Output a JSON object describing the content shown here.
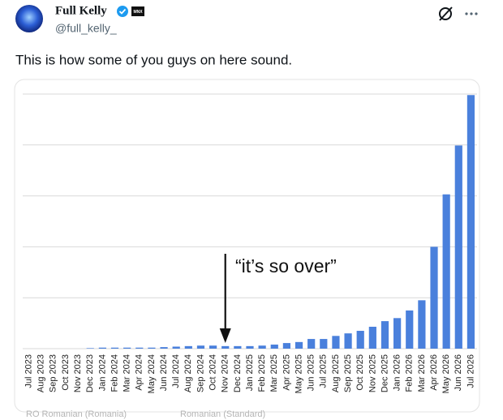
{
  "tweet": {
    "author": {
      "name": "Full Kelly",
      "handle": "@full_kelly_",
      "badge": "MNX"
    },
    "text": "This is how some of you guys on here sound.",
    "footer": [
      "RO Romanian (Romania)",
      "Romanian (Standard)"
    ]
  },
  "chart_data": {
    "type": "bar",
    "categories": [
      "Jul 2023",
      "Aug 2023",
      "Sep 2023",
      "Oct 2023",
      "Nov 2023",
      "Dec 2023",
      "Jan 2024",
      "Feb 2024",
      "Mar 2024",
      "Apr 2024",
      "May 2024",
      "Jun 2024",
      "Jul 2024",
      "Aug 2024",
      "Sep 2024",
      "Oct 2024",
      "Nov 2024",
      "Dec 2024",
      "Jan 2025",
      "Feb 2025",
      "Mar 2025",
      "Apr 2025",
      "May 2025",
      "Jun 2025",
      "Jul 2025",
      "Aug 2025",
      "Sep 2025",
      "Oct 2025",
      "Nov 2025",
      "Dec 2025",
      "Jan 2026",
      "Feb 2026",
      "Mar 2026",
      "Apr 2026",
      "May 2026",
      "Jun 2026",
      "Jul 2026"
    ],
    "values": [
      0,
      0,
      0,
      0,
      0,
      0.01,
      0.02,
      0.02,
      0.02,
      0.02,
      0.02,
      0.03,
      0.04,
      0.05,
      0.06,
      0.06,
      0.05,
      0.05,
      0.05,
      0.06,
      0.08,
      0.11,
      0.13,
      0.19,
      0.19,
      0.25,
      0.3,
      0.35,
      0.43,
      0.54,
      0.6,
      0.75,
      0.95,
      2.0,
      3.03,
      3.99,
      4.98
    ],
    "color": "#4a80dc",
    "ylim": [
      0,
      5
    ],
    "yticks": [
      0,
      1,
      2,
      3,
      4,
      5
    ],
    "grid": true,
    "annotation": {
      "text": "“it’s so over”",
      "category": "Nov 2024"
    }
  }
}
